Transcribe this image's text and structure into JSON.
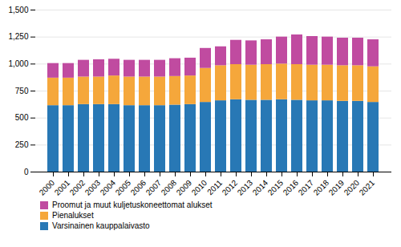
{
  "chart_data": {
    "type": "bar",
    "stacked": true,
    "categories": [
      "2000",
      "2001",
      "2002",
      "2003",
      "2004",
      "2005",
      "2006",
      "2007",
      "2008",
      "2009",
      "2010",
      "2011",
      "2012",
      "2013",
      "2014",
      "2015",
      "2016",
      "2017",
      "2018",
      "2019",
      "2020",
      "2021"
    ],
    "series": [
      {
        "name": "Varsinainen kauppalaivasto",
        "color": "#2878b5",
        "values": [
          615,
          615,
          625,
          625,
          625,
          615,
          615,
          615,
          620,
          625,
          645,
          660,
          670,
          665,
          665,
          670,
          665,
          660,
          660,
          655,
          655,
          645
        ]
      },
      {
        "name": "Pienalukset",
        "color": "#f5a73b",
        "values": [
          255,
          255,
          255,
          255,
          265,
          265,
          265,
          265,
          265,
          265,
          315,
          325,
          325,
          325,
          330,
          330,
          330,
          330,
          330,
          330,
          330,
          330
        ]
      },
      {
        "name": "Proomut ja muut kuljetuskoneettomat alukset",
        "color": "#c04ba0",
        "values": [
          135,
          135,
          155,
          160,
          155,
          155,
          155,
          155,
          165,
          165,
          185,
          175,
          225,
          225,
          230,
          250,
          275,
          265,
          260,
          255,
          255,
          250
        ]
      }
    ],
    "ylim": [
      0,
      1500
    ],
    "yticks": [
      0,
      250,
      500,
      750,
      {
        "value": 1000,
        "label": "1,000"
      },
      {
        "value": 1250,
        "label": "1,250"
      },
      {
        "value": 1500,
        "label": "1,500"
      }
    ],
    "grid": true,
    "legend": "lower left"
  }
}
